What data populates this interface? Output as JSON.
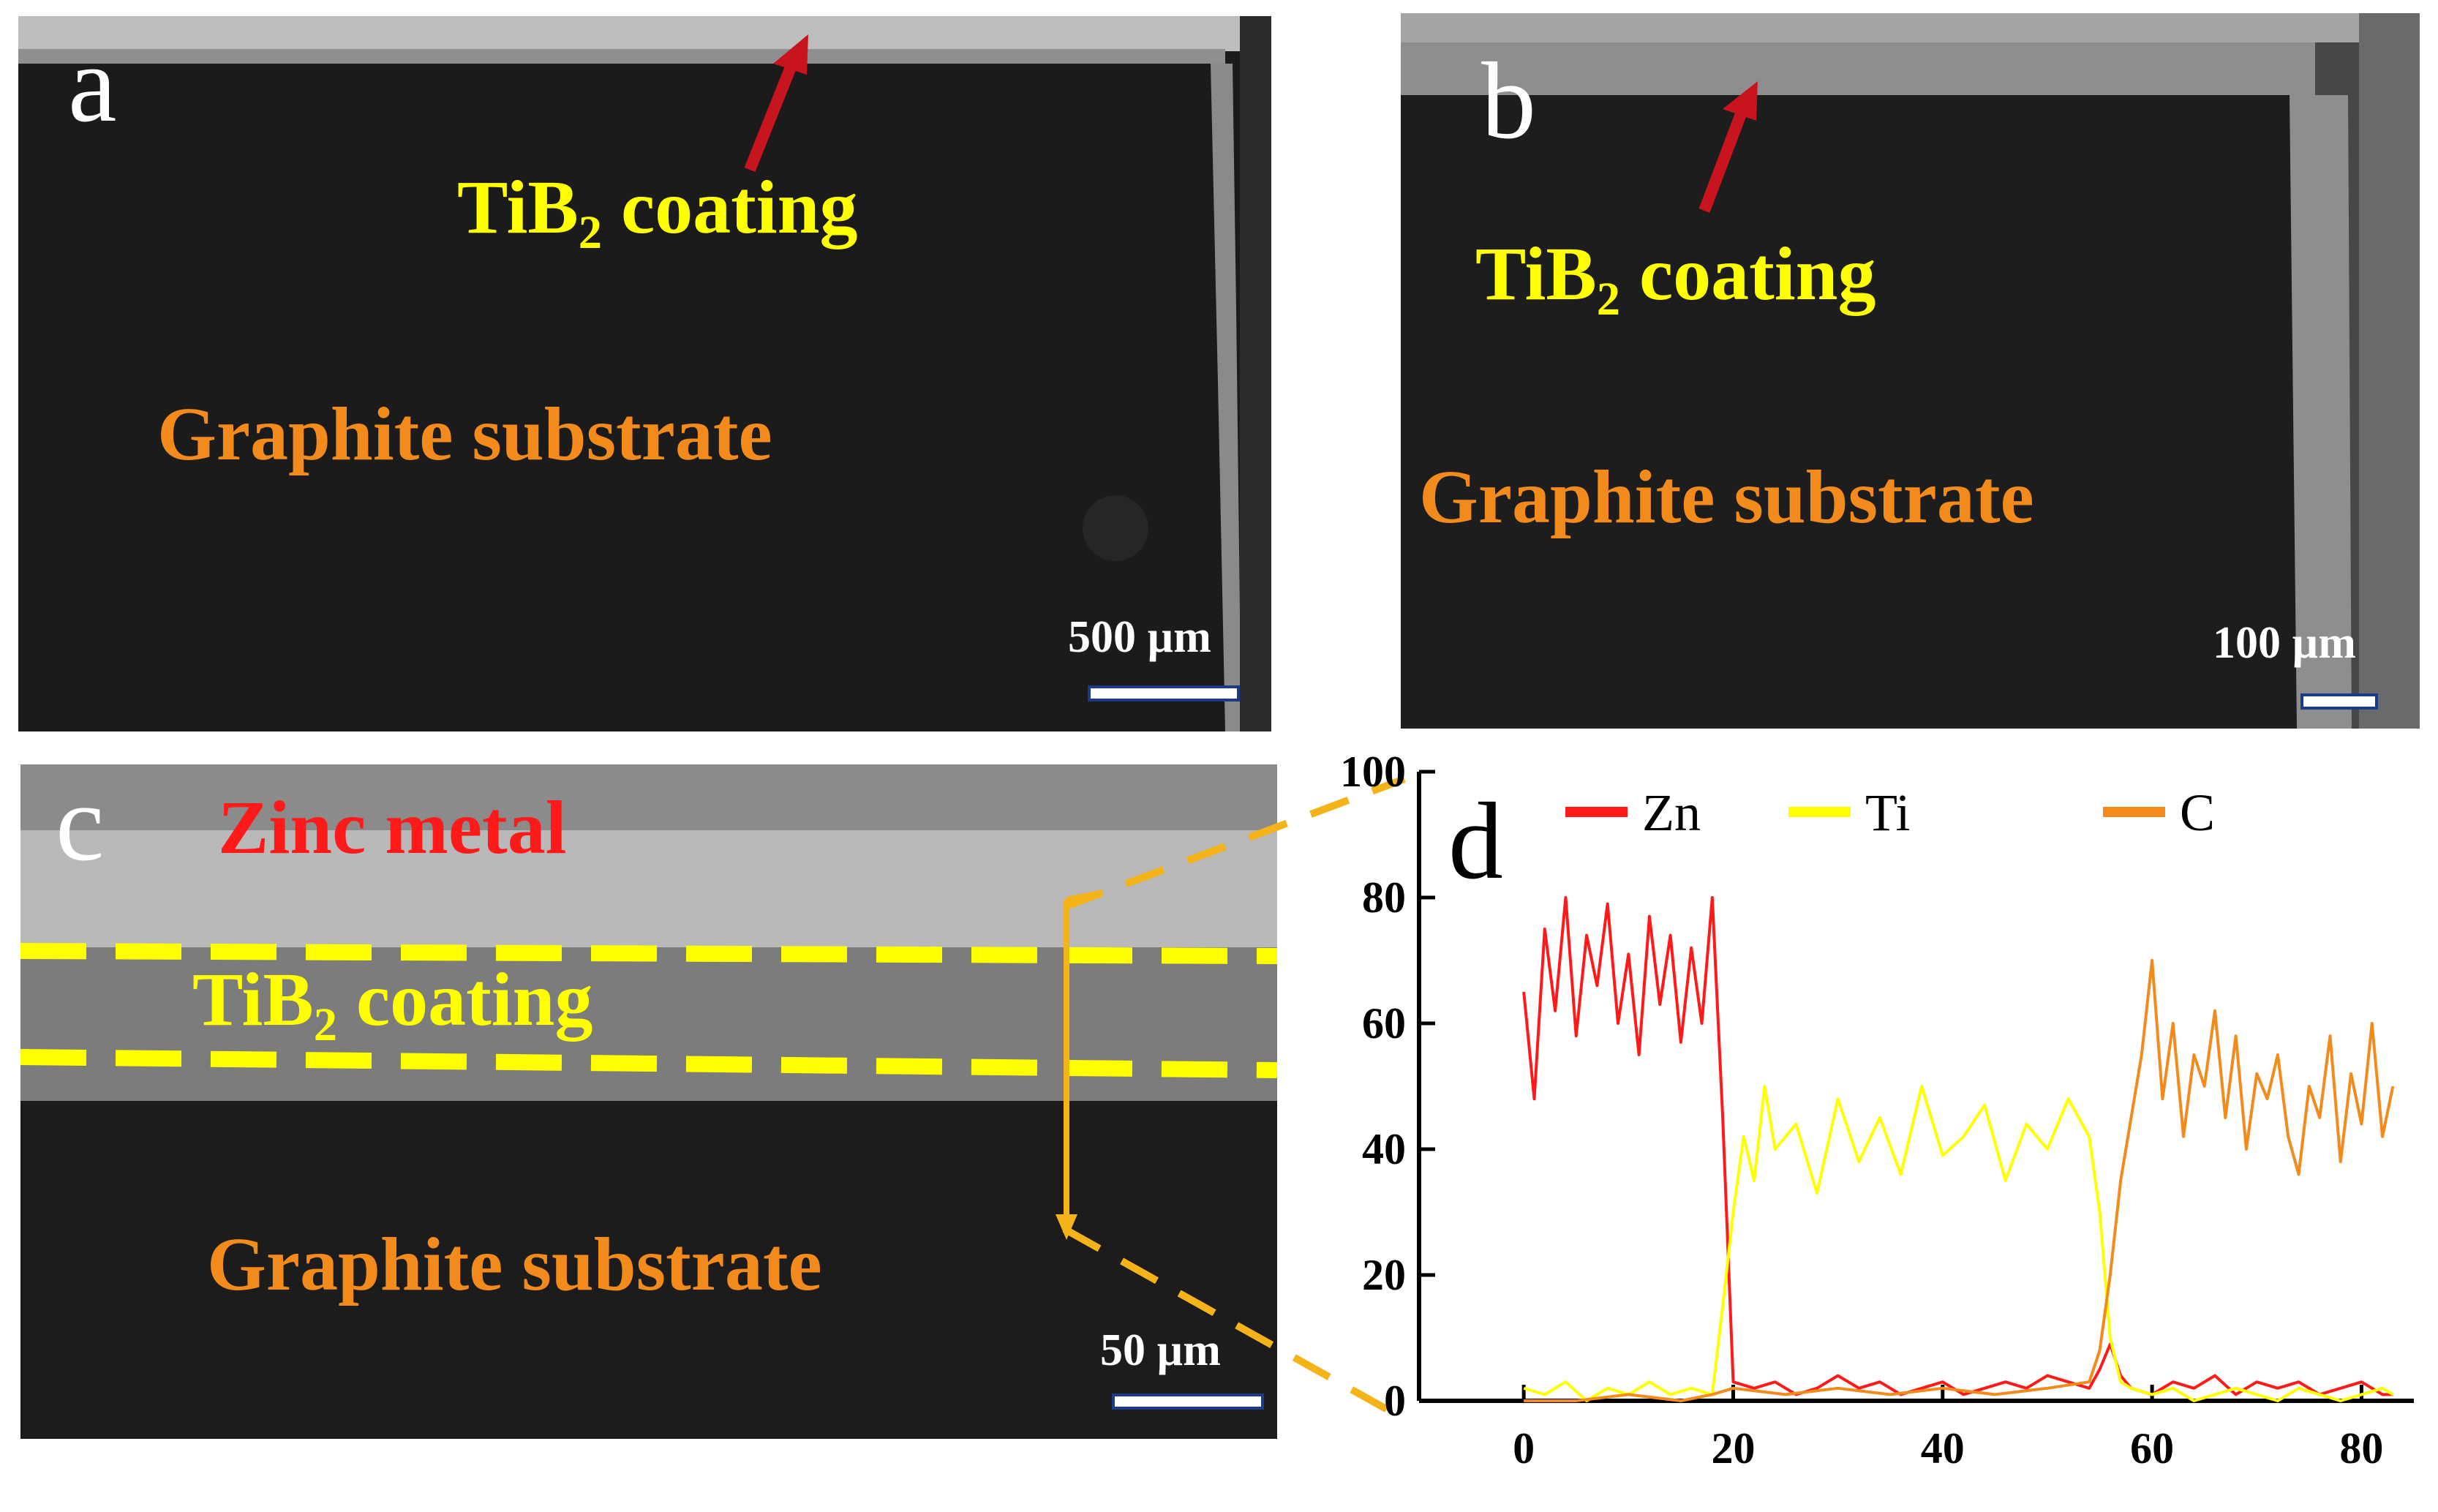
{
  "figure": {
    "panels": {
      "a": {
        "letter": "a",
        "coating_label": "TiB",
        "coating_sub": "2",
        "coating_rest": " coating",
        "substrate_label": "Graphite substrate",
        "scale_bar": "500 µm"
      },
      "b": {
        "letter": "b",
        "coating_label": "TiB",
        "coating_sub": "2",
        "coating_rest": " coating",
        "substrate_label": "Graphite substrate",
        "scale_bar": "100 µm"
      },
      "c": {
        "letter": "c",
        "metal_label": "Zinc metal",
        "coating_label": "TiB",
        "coating_sub": "2",
        "coating_rest": " coating",
        "substrate_label": "Graphite substrate",
        "scale_bar": "50 µm"
      },
      "d": {
        "letter": "d"
      }
    },
    "colors": {
      "label_yellow": "#ffff00",
      "label_orange": "#f28a1c",
      "label_red": "#ff1a1a",
      "arrow_red": "#c8141e",
      "dash_yellow": "#ffff00",
      "connector_orange": "#f5b31a"
    }
  },
  "chart_data": {
    "type": "line",
    "title": "",
    "xlabel": "",
    "ylabel": "",
    "xlim": [
      -10,
      85
    ],
    "ylim": [
      0,
      100
    ],
    "x_ticks": [
      0,
      20,
      40,
      60,
      80
    ],
    "y_ticks": [
      0,
      20,
      40,
      60,
      80,
      100
    ],
    "legend": [
      "Zn",
      "Ti",
      "C"
    ],
    "legend_position": "top",
    "series": [
      {
        "name": "Zn",
        "color": "#ff1a1a",
        "x": [
          0,
          1,
          2,
          3,
          4,
          5,
          6,
          7,
          8,
          9,
          10,
          11,
          12,
          13,
          14,
          15,
          16,
          17,
          18,
          19,
          20,
          22,
          24,
          26,
          28,
          30,
          32,
          34,
          36,
          38,
          40,
          42,
          44,
          46,
          48,
          50,
          52,
          54,
          55,
          56,
          57,
          58,
          60,
          62,
          64,
          66,
          68,
          70,
          72,
          74,
          76,
          78,
          80,
          82,
          83
        ],
        "values": [
          65,
          48,
          75,
          62,
          80,
          58,
          74,
          66,
          79,
          60,
          71,
          55,
          77,
          63,
          74,
          57,
          72,
          60,
          80,
          45,
          3,
          2,
          3,
          1,
          2,
          4,
          2,
          3,
          1,
          2,
          3,
          1,
          2,
          3,
          2,
          4,
          3,
          2,
          5,
          9,
          4,
          2,
          1,
          3,
          2,
          4,
          1,
          3,
          2,
          3,
          1,
          2,
          3,
          1,
          1
        ]
      },
      {
        "name": "Ti",
        "color": "#ffff00",
        "x": [
          0,
          2,
          4,
          6,
          8,
          10,
          12,
          14,
          16,
          18,
          19,
          20,
          21,
          22,
          23,
          24,
          26,
          28,
          30,
          32,
          34,
          36,
          38,
          40,
          42,
          44,
          46,
          48,
          50,
          52,
          54,
          55,
          56,
          57,
          58,
          60,
          62,
          64,
          66,
          68,
          70,
          72,
          74,
          76,
          78,
          80,
          82,
          83
        ],
        "values": [
          2,
          1,
          3,
          0,
          2,
          1,
          3,
          1,
          2,
          1,
          15,
          30,
          42,
          35,
          50,
          40,
          44,
          33,
          48,
          38,
          45,
          36,
          50,
          39,
          42,
          47,
          35,
          44,
          40,
          48,
          42,
          30,
          10,
          3,
          2,
          1,
          2,
          0,
          1,
          2,
          1,
          0,
          2,
          1,
          0,
          1,
          2,
          1
        ]
      },
      {
        "name": "C",
        "color": "#f28a1c",
        "x": [
          0,
          5,
          10,
          15,
          18,
          20,
          25,
          30,
          35,
          40,
          45,
          50,
          54,
          55,
          56,
          57,
          58,
          59,
          60,
          61,
          62,
          63,
          64,
          65,
          66,
          67,
          68,
          69,
          70,
          71,
          72,
          73,
          74,
          75,
          76,
          77,
          78,
          79,
          80,
          81,
          82,
          83
        ],
        "values": [
          0,
          0,
          1,
          0,
          1,
          2,
          1,
          2,
          1,
          2,
          1,
          2,
          3,
          8,
          20,
          35,
          45,
          55,
          70,
          48,
          60,
          42,
          55,
          50,
          62,
          45,
          58,
          40,
          52,
          48,
          55,
          42,
          36,
          50,
          45,
          58,
          38,
          52,
          44,
          60,
          42,
          50
        ]
      }
    ]
  }
}
